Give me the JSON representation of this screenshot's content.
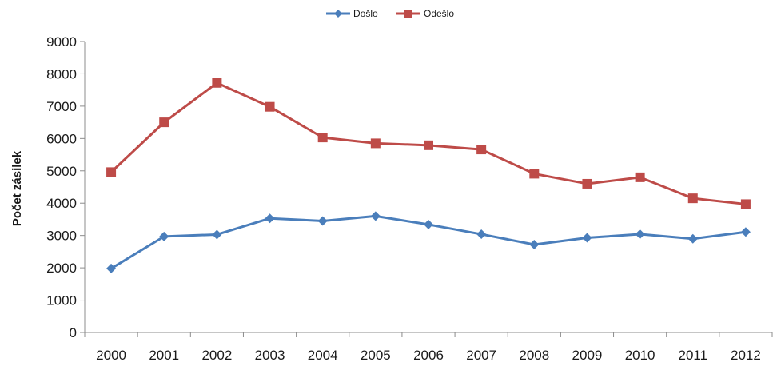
{
  "chart_data": {
    "type": "line",
    "title": "",
    "xlabel": "",
    "ylabel": "Počet zásilek",
    "ylim": [
      0,
      9000
    ],
    "yticks": [
      0,
      1000,
      2000,
      3000,
      4000,
      5000,
      6000,
      7000,
      8000,
      9000
    ],
    "categories": [
      "2000",
      "2001",
      "2002",
      "2003",
      "2004",
      "2005",
      "2006",
      "2007",
      "2008",
      "2009",
      "2010",
      "2011",
      "2012"
    ],
    "grid": false,
    "legend_position": "top-center",
    "series": [
      {
        "name": "Došlo",
        "color": "#4a7ebb",
        "marker": "diamond",
        "values": [
          1980,
          2970,
          3030,
          3530,
          3450,
          3600,
          3340,
          3040,
          2720,
          2930,
          3040,
          2900,
          3110
        ]
      },
      {
        "name": "Odešlo",
        "color": "#be4b48",
        "marker": "square",
        "values": [
          4960,
          6500,
          7720,
          6980,
          6030,
          5850,
          5790,
          5660,
          4910,
          4600,
          4800,
          4150,
          3970
        ]
      }
    ]
  }
}
